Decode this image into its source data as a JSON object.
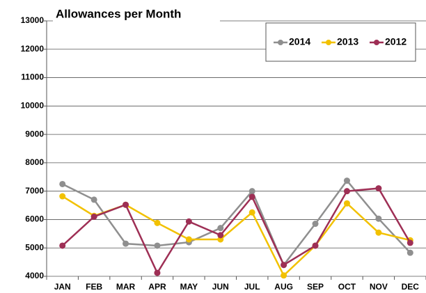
{
  "chart_data": {
    "type": "line",
    "title": "Allowances per Month",
    "categories": [
      "JAN",
      "FEB",
      "MAR",
      "APR",
      "MAY",
      "JUN",
      "JUL",
      "AUG",
      "SEP",
      "OCT",
      "NOV",
      "DEC"
    ],
    "series": [
      {
        "name": "2014",
        "color": "#8f8f8f",
        "values": [
          7250,
          6700,
          5150,
          5080,
          5200,
          5700,
          7000,
          4400,
          5850,
          7370,
          6030,
          4830
        ]
      },
      {
        "name": "2013",
        "color": "#f2c100",
        "values": [
          6820,
          6130,
          6520,
          5880,
          5300,
          5300,
          6250,
          4030,
          5080,
          6570,
          5540,
          5270
        ]
      },
      {
        "name": "2012",
        "color": "#9e2f55",
        "values": [
          5080,
          6100,
          6520,
          4120,
          5930,
          5450,
          6800,
          4400,
          5080,
          7000,
          7100,
          5180
        ]
      }
    ],
    "ylim": [
      4000,
      13000
    ],
    "yticks": [
      4000,
      5000,
      6000,
      7000,
      8000,
      9000,
      10000,
      11000,
      12000,
      13000
    ],
    "grid": true,
    "legend": "top-right"
  }
}
